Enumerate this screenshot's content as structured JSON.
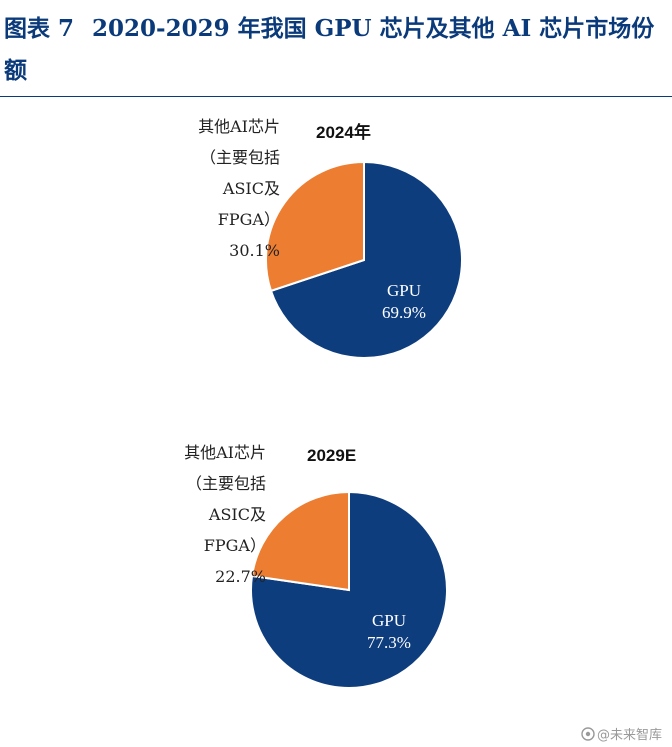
{
  "figure": {
    "label": "图表 7",
    "title": "2020-2029 年我国 GPU 芯片及其他 AI 芯片市场份额"
  },
  "chart_data": [
    {
      "type": "pie",
      "title": "2024年",
      "slices": [
        {
          "name": "GPU",
          "value": 69.9,
          "label": "69.9%",
          "color": "#0e3d7e"
        },
        {
          "name": "其他AI芯片（主要包括ASIC及FPGA）",
          "value": 30.1,
          "label": "30.1%",
          "color": "#ec7d31"
        }
      ],
      "other_label_lines": [
        "其他AI芯片",
        "（主要包括",
        "ASIC及",
        "FPGA）",
        "30.1%"
      ],
      "gpu_label_lines": [
        "GPU",
        "69.9%"
      ]
    },
    {
      "type": "pie",
      "title": "2029E",
      "slices": [
        {
          "name": "GPU",
          "value": 77.3,
          "label": "77.3%",
          "color": "#0e3d7e"
        },
        {
          "name": "其他AI芯片（主要包括ASIC及FPGA）",
          "value": 22.7,
          "label": "22.7%",
          "color": "#ec7d31"
        }
      ],
      "other_label_lines": [
        "其他AI芯片",
        "（主要包括",
        "ASIC及",
        "FPGA）",
        "22.7%"
      ],
      "gpu_label_lines": [
        "GPU",
        "77.3%"
      ]
    }
  ],
  "watermark": {
    "text": "@未来智库"
  },
  "colors": {
    "gpu": "#0e3d7e",
    "other": "#ec7d31",
    "title": "#0a3a7a"
  }
}
